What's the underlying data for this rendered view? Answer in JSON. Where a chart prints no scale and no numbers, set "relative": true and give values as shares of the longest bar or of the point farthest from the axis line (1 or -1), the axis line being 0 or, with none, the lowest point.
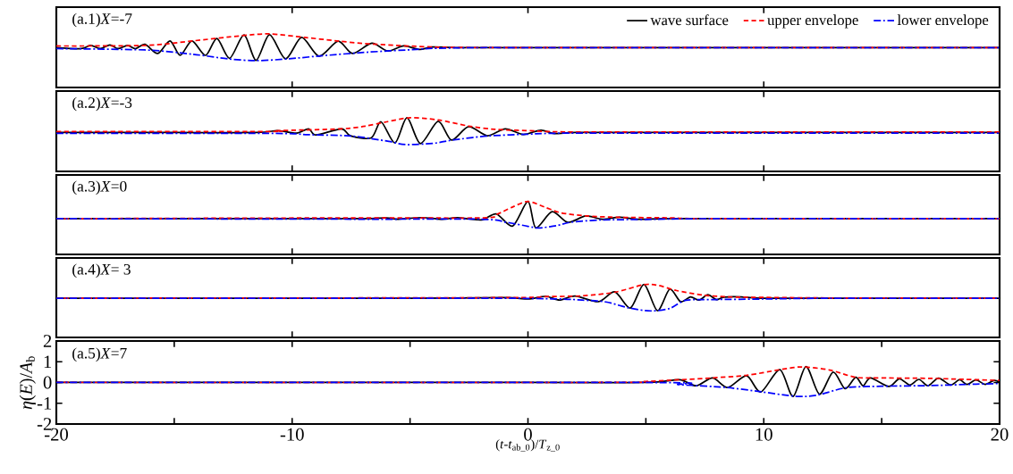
{
  "chart_data": [
    {
      "type": "line",
      "title": "(a.1)*X*=-7",
      "relative": true,
      "xlim": [
        -20,
        20
      ],
      "xticks": [
        -20,
        -10,
        0,
        10,
        20
      ],
      "tick_labels": false,
      "legend": "top right",
      "series": [
        {
          "name": "wave surface",
          "color": "#000000",
          "line_style": "solid",
          "x": [
            -20,
            -18.95,
            -18.54,
            -18.13,
            -17.73,
            -17.39,
            -16.98,
            -16.64,
            -16.24,
            -15.7,
            -15.18,
            -14.75,
            -14.25,
            -13.67,
            -13.19,
            -12.65,
            -12.04,
            -11.53,
            -10.96,
            -10.28,
            -9.6,
            -8.86,
            -8.05,
            -7.44,
            -6.62,
            -5.95,
            -5.27,
            -4.59,
            -4.05,
            -3,
            0,
            10,
            20
          ],
          "values": [
            0.49,
            0.45,
            0.57,
            0.45,
            0.59,
            0.45,
            0.57,
            0.45,
            0.61,
            0.27,
            0.74,
            0.2,
            0.74,
            0.2,
            0.83,
            0.09,
            0.96,
            0.01,
            0.97,
            0.07,
            0.87,
            0.17,
            0.73,
            0.27,
            0.65,
            0.36,
            0.55,
            0.42,
            0.51,
            0.49,
            0.49,
            0.49,
            0.49
          ]
        },
        {
          "name": "upper envelope",
          "color": "#ff0000",
          "line_style": "dashed",
          "x": [
            -20,
            -16.24,
            -14.21,
            -12.18,
            -10.96,
            -9.47,
            -8.11,
            -6.76,
            -4.05,
            -2,
            0,
            10,
            20
          ],
          "values": [
            0.55,
            0.57,
            0.74,
            0.93,
            1,
            0.87,
            0.74,
            0.63,
            0.51,
            0.49,
            0.49,
            0.49,
            0.49
          ]
        },
        {
          "name": "lower envelope",
          "color": "#0000ff",
          "line_style": "dashdot",
          "x": [
            -20,
            -16.24,
            -14.21,
            -12.72,
            -11.53,
            -10.14,
            -8.79,
            -6.76,
            -4.73,
            -4.05,
            -2,
            0,
            10,
            20
          ],
          "values": [
            0.45,
            0.4,
            0.24,
            0.07,
            0,
            0.07,
            0.18,
            0.32,
            0.42,
            0.46,
            0.49,
            0.49,
            0.49,
            0.49
          ]
        }
      ]
    },
    {
      "type": "line",
      "title": "(a.2)*X*=-3",
      "relative": true,
      "xlim": [
        -20,
        20
      ],
      "xticks": [
        -20,
        -10,
        0,
        10,
        20
      ],
      "tick_labels": false,
      "series": [
        {
          "color": "#000000",
          "line_style": "solid",
          "x": [
            -20,
            -15,
            -11.5,
            -10.63,
            -9.81,
            -9.3,
            -8.99,
            -7.91,
            -7.53,
            -6.65,
            -6.23,
            -5.64,
            -5.13,
            -4.56,
            -3.81,
            -3.24,
            -2.52,
            -1.72,
            -0.96,
            -0.2,
            0.55,
            1.12,
            2,
            5,
            10,
            20
          ],
          "values": [
            0.45,
            0.45,
            0.45,
            0.52,
            0.43,
            0.59,
            0.36,
            0.59,
            0.33,
            0.25,
            0.85,
            0.06,
            1,
            0.04,
            0.87,
            0.17,
            0.67,
            0.33,
            0.59,
            0.38,
            0.54,
            0.41,
            0.45,
            0.45,
            0.45,
            0.45
          ]
        },
        {
          "color": "#ff0000",
          "line_style": "dashed",
          "x": [
            -20,
            -11,
            -10.6,
            -7.9,
            -6.9,
            -6.0,
            -5.0,
            -3.8,
            -2.5,
            -1.4,
            0,
            2,
            10,
            20
          ],
          "values": [
            0.49,
            0.49,
            0.52,
            0.59,
            0.69,
            0.85,
            1,
            0.92,
            0.69,
            0.57,
            0.52,
            0.47,
            0.47,
            0.47
          ]
        },
        {
          "color": "#0000ff",
          "line_style": "dashdot",
          "x": [
            -20,
            -11,
            -9.3,
            -7.5,
            -5.9,
            -5.2,
            -4.0,
            -3.2,
            -1.7,
            0,
            2,
            10,
            20
          ],
          "values": [
            0.42,
            0.42,
            0.37,
            0.32,
            0.12,
            0,
            0.05,
            0.17,
            0.32,
            0.39,
            0.43,
            0.43,
            0.43
          ]
        }
      ]
    },
    {
      "type": "line",
      "title": "(a.3)*X*=0",
      "relative": true,
      "xlim": [
        -20,
        20
      ],
      "xticks": [
        -20,
        -10,
        0,
        10,
        20
      ],
      "tick_labels": false,
      "series": [
        {
          "color": "#000000",
          "line_style": "solid",
          "x": [
            -20,
            -10,
            -7,
            -6,
            -5.5,
            -4.5,
            -3.7,
            -3,
            -2.5,
            -1.91,
            -1.34,
            -0.65,
            0,
            0.33,
            1.02,
            1.69,
            2.45,
            3.14,
            3.9,
            4.66,
            6,
            10,
            20
          ],
          "values": [
            0.35,
            0.35,
            0.35,
            0.38,
            0.33,
            0.39,
            0.33,
            0.39,
            0.34,
            0.31,
            0.53,
            0.07,
            1,
            0,
            0.61,
            0.21,
            0.45,
            0.33,
            0.4,
            0.33,
            0.35,
            0.35,
            0.35
          ]
        },
        {
          "color": "#ff0000",
          "line_style": "dashed",
          "x": [
            -20,
            -7,
            -1.9,
            -1.3,
            -0.65,
            0,
            0.7,
            1.4,
            2.5,
            3.9,
            6,
            8,
            20
          ],
          "values": [
            0.35,
            0.38,
            0.38,
            0.52,
            0.79,
            1,
            0.79,
            0.57,
            0.45,
            0.4,
            0.38,
            0.35,
            0.35
          ]
        },
        {
          "color": "#0000ff",
          "line_style": "dashdot",
          "x": [
            -20,
            -7,
            -2,
            -0.9,
            0,
            0.45,
            1.2,
            1.8,
            3.1,
            5,
            8,
            20
          ],
          "values": [
            0.35,
            0.33,
            0.33,
            0.21,
            0.06,
            0,
            0.08,
            0.21,
            0.3,
            0.32,
            0.35,
            0.35
          ]
        }
      ]
    },
    {
      "type": "line",
      "title": "(a.4)*X*= 3",
      "relative": true,
      "xlim": [
        -20,
        20
      ],
      "xticks": [
        -20,
        -10,
        0,
        10,
        20
      ],
      "tick_labels": false,
      "series": [
        {
          "color": "#000000",
          "line_style": "solid",
          "x": [
            -20,
            -5,
            -1,
            0,
            0.75,
            1.34,
            2.0,
            2.99,
            3.68,
            4.34,
            4.92,
            5.49,
            6.01,
            6.47,
            6.89,
            7.26,
            7.63,
            7.99,
            8.32,
            9.04,
            10,
            13,
            20
          ],
          "values": [
            0.48,
            0.48,
            0.5,
            0.45,
            0.55,
            0.41,
            0.56,
            0.35,
            0.72,
            0.11,
            1,
            0.01,
            0.82,
            0.35,
            0.53,
            0.41,
            0.61,
            0.43,
            0.52,
            0.53,
            0.48,
            0.48,
            0.48
          ]
        },
        {
          "color": "#ff0000",
          "line_style": "dashed",
          "x": [
            -20,
            -1.5,
            0.7,
            2.3,
            3.7,
            4.9,
            5.5,
            6.3,
            7.4,
            8.5,
            10,
            13,
            20
          ],
          "values": [
            0.48,
            0.5,
            0.54,
            0.57,
            0.71,
            0.99,
            0.97,
            0.77,
            0.6,
            0.53,
            0.51,
            0.49,
            0.48
          ]
        },
        {
          "color": "#0000ff",
          "line_style": "dashdot",
          "x": [
            -20,
            -2,
            1.3,
            2.3,
            3.3,
            4.3,
            5.2,
            6.0,
            6.7,
            8,
            10,
            13,
            20
          ],
          "values": [
            0.48,
            0.48,
            0.45,
            0.41,
            0.34,
            0.11,
            0,
            0.09,
            0.4,
            0.43,
            0.45,
            0.48,
            0.48
          ]
        }
      ]
    },
    {
      "type": "line",
      "title": "(a.5)*X*=7",
      "xlabel": "(*t*-*t*$_{ab_0}$)/*T*$_{z_0}$",
      "ylabel": "*η*(*E*)/*A*$_{b}$",
      "xlim": [
        -20,
        20
      ],
      "ylim": [
        -2,
        2
      ],
      "xticks": [
        -20,
        {
          "value": -15,
          "label": null
        },
        -10,
        {
          "value": -5,
          "label": null
        },
        0,
        {
          "value": 5,
          "label": null
        },
        10,
        {
          "value": 15,
          "label": null
        },
        20
      ],
      "yticks": [
        -2,
        -1,
        0,
        1,
        2
      ],
      "series": [
        {
          "color": "#000000",
          "line_style": "solid",
          "x": [
            -20,
            0,
            5,
            6.42,
            7.13,
            7.83,
            8.47,
            9.27,
            9.87,
            10.68,
            11.24,
            11.79,
            12.36,
            12.94,
            13.45,
            13.9,
            14.21,
            14.53,
            15.3,
            15.75,
            16.19,
            16.58,
            16.96,
            17.41,
            17.92,
            18.3,
            18.62,
            19.0,
            19.39,
            19.77,
            20
          ],
          "values": [
            0,
            0,
            0,
            0.13,
            -0.16,
            0.22,
            -0.24,
            0.33,
            -0.46,
            0.62,
            -0.67,
            0.77,
            -0.56,
            0.5,
            -0.3,
            0.25,
            -0.16,
            0.22,
            -0.19,
            0.18,
            -0.12,
            0.15,
            -0.16,
            0.21,
            -0.12,
            0.13,
            -0.09,
            0.12,
            -0.09,
            0.1,
            0
          ]
        },
        {
          "color": "#ff0000",
          "line_style": "dashed",
          "x": [
            -20,
            3,
            5,
            6.4,
            7.8,
            9.3,
            10.7,
            11.6,
            12.8,
            13.9,
            15,
            17,
            18.5,
            20
          ],
          "values": [
            0,
            0,
            0.05,
            0.13,
            0.22,
            0.35,
            0.62,
            0.75,
            0.6,
            0.25,
            0.22,
            0.2,
            0.15,
            0.1
          ]
        },
        {
          "color": "#0000ff",
          "line_style": "dashdot",
          "x": [
            -20,
            5,
            6.4,
            8.4,
            9.9,
            11.4,
            12.3,
            13.5,
            15,
            17,
            19,
            20
          ],
          "values": [
            0,
            0,
            -0.1,
            -0.24,
            -0.45,
            -0.67,
            -0.6,
            -0.25,
            -0.18,
            -0.15,
            -0.08,
            -0.05
          ]
        }
      ]
    }
  ]
}
